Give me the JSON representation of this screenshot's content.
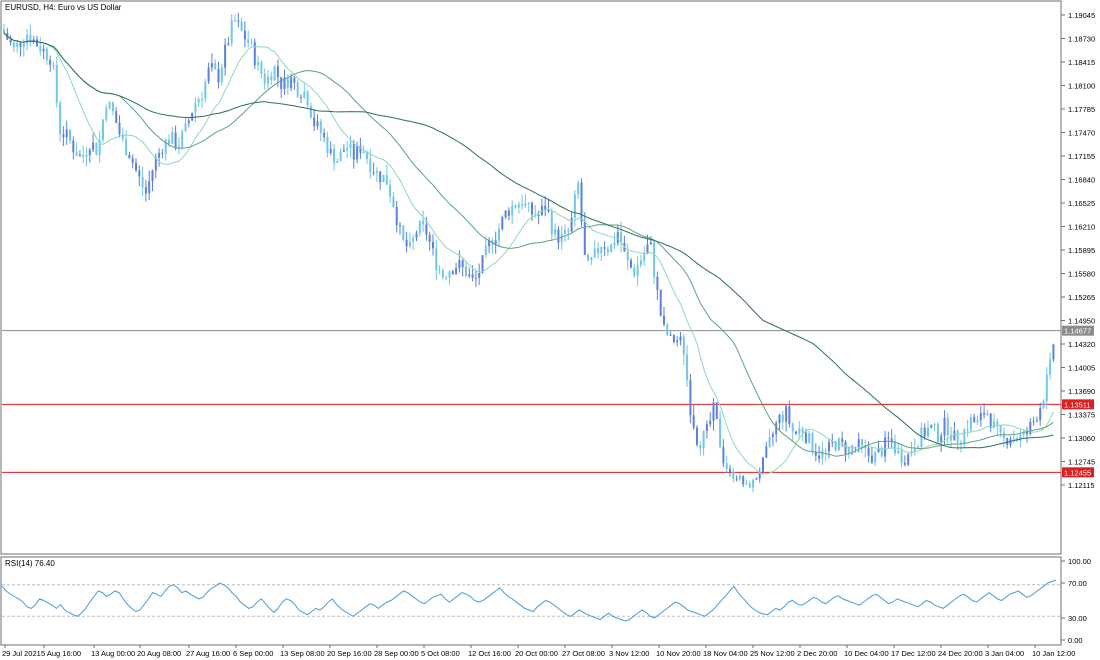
{
  "window": {
    "symbol": "EURUSD",
    "timeframe": "H4",
    "title": "EURUSD, H4:  Euro vs US Dollar"
  },
  "colors": {
    "background": "#ffffff",
    "frame": "#6f6f6f",
    "candle": "#5b7fe6",
    "candle_alt": "#6fc7ea",
    "ma_fast": "#8fd9b8",
    "ma_mid": "#5fa27f",
    "ma_slow": "#2f6f55",
    "price_line": "#8c8c8c",
    "level_line": "#e01e1e",
    "rsi_line": "#4a9be0",
    "rsi_levels": "#bdbdbd"
  },
  "chart_data": [
    {
      "type": "candlestick",
      "title": "EURUSD, H4:  Euro vs US Dollar",
      "ylim": [
        1.20525,
        1.19045
      ],
      "y_ticks": [
        "1.19045",
        "1.18730",
        "1.18415",
        "1.18100",
        "1.17785",
        "1.17470",
        "1.17155",
        "1.16840",
        "1.16525",
        "1.16210",
        "1.15895",
        "1.15580",
        "1.15265",
        "1.14950",
        "1.14320",
        "1.14005",
        "1.13690",
        "1.13375",
        "1.13060",
        "1.12745",
        "1.12115"
      ],
      "x_ticks": [
        "29 Jul 2021",
        "5 Aug 16:00",
        "13 Aug 00:00",
        "20 Aug 08:00",
        "27 Aug 16:00",
        "6 Sep 00:00",
        "13 Sep 08:00",
        "20 Sep 16:00",
        "28 Sep 00:00",
        "5 Oct 08:00",
        "12 Oct 16:00",
        "20 Oct 00:00",
        "27 Oct 08:00",
        "3 Nov 12:00",
        "10 Nov 20:00",
        "18 Nov 04:00",
        "25 Nov 12:00",
        "2 Dec 20:00",
        "10 Dec 04:00",
        "17 Dec 12:00",
        "24 Dec 20:00",
        "3 Jan 04:00",
        "10 Jan 12:00"
      ],
      "price_labels": [
        {
          "text": "1.14677",
          "value": 1.14677,
          "kind": "current"
        },
        {
          "text": "1.13511",
          "value": 1.13511,
          "kind": "level"
        },
        {
          "text": "1.12455",
          "value": 1.12455,
          "kind": "level"
        }
      ],
      "close_path": [
        [
          0,
          1.1885
        ],
        [
          12,
          1.1858
        ],
        [
          25,
          1.188
        ],
        [
          38,
          1.1862
        ],
        [
          50,
          1.1845
        ],
        [
          58,
          1.175
        ],
        [
          66,
          1.174
        ],
        [
          72,
          1.1725
        ],
        [
          80,
          1.1712
        ],
        [
          88,
          1.1735
        ],
        [
          96,
          1.1722
        ],
        [
          104,
          1.179
        ],
        [
          112,
          1.177
        ],
        [
          120,
          1.1735
        ],
        [
          128,
          1.1718
        ],
        [
          136,
          1.1688
        ],
        [
          144,
          1.1665
        ],
        [
          152,
          1.1705
        ],
        [
          160,
          1.1728
        ],
        [
          168,
          1.174
        ],
        [
          176,
          1.173
        ],
        [
          184,
          1.1752
        ],
        [
          192,
          1.1785
        ],
        [
          200,
          1.18
        ],
        [
          208,
          1.1835
        ],
        [
          216,
          1.182
        ],
        [
          224,
          1.186
        ],
        [
          232,
          1.1898
        ],
        [
          240,
          1.188
        ],
        [
          248,
          1.1865
        ],
        [
          256,
          1.1835
        ],
        [
          264,
          1.1815
        ],
        [
          272,
          1.1835
        ],
        [
          280,
          1.181
        ],
        [
          288,
          1.182
        ],
        [
          296,
          1.1805
        ],
        [
          304,
          1.18
        ],
        [
          312,
          1.176
        ],
        [
          320,
          1.1745
        ],
        [
          328,
          1.172
        ],
        [
          336,
          1.171
        ],
        [
          344,
          1.173
        ],
        [
          352,
          1.1715
        ],
        [
          360,
          1.173
        ],
        [
          368,
          1.1705
        ],
        [
          376,
          1.169
        ],
        [
          384,
          1.1685
        ],
        [
          392,
          1.165
        ],
        [
          400,
          1.16
        ],
        [
          408,
          1.159
        ],
        [
          416,
          1.162
        ],
        [
          424,
          1.1615
        ],
        [
          432,
          1.158
        ],
        [
          440,
          1.1555
        ],
        [
          448,
          1.1565
        ],
        [
          456,
          1.157
        ],
        [
          464,
          1.156
        ],
        [
          472,
          1.1545
        ],
        [
          480,
          1.157
        ],
        [
          488,
          1.16
        ],
        [
          496,
          1.1615
        ],
        [
          504,
          1.164
        ],
        [
          512,
          1.165
        ],
        [
          520,
          1.1655
        ],
        [
          528,
          1.164
        ],
        [
          536,
          1.1635
        ],
        [
          544,
          1.165
        ],
        [
          552,
          1.161
        ],
        [
          560,
          1.1605
        ],
        [
          568,
          1.1615
        ],
        [
          576,
          1.168
        ],
        [
          584,
          1.156
        ],
        [
          592,
          1.158
        ],
        [
          600,
          1.16
        ],
        [
          608,
          1.159
        ],
        [
          616,
          1.1615
        ],
        [
          624,
          1.1575
        ],
        [
          632,
          1.156
        ],
        [
          640,
          1.158
        ],
        [
          648,
          1.16
        ],
        [
          656,
          1.1525
        ],
        [
          664,
          1.146
        ],
        [
          672,
          1.144
        ],
        [
          680,
          1.1445
        ],
        [
          688,
          1.135
        ],
        [
          696,
          1.13
        ],
        [
          704,
          1.131
        ],
        [
          712,
          1.1345
        ],
        [
          720,
          1.1285
        ],
        [
          728,
          1.124
        ],
        [
          736,
          1.1235
        ],
        [
          744,
          1.1205
        ],
        [
          752,
          1.122
        ],
        [
          760,
          1.1265
        ],
        [
          768,
          1.13
        ],
        [
          776,
          1.133
        ],
        [
          784,
          1.134
        ],
        [
          792,
          1.131
        ],
        [
          800,
          1.132
        ],
        [
          808,
          1.13
        ],
        [
          816,
          1.1285
        ],
        [
          824,
          1.1285
        ],
        [
          832,
          1.13
        ],
        [
          840,
          1.1295
        ],
        [
          848,
          1.129
        ],
        [
          856,
          1.1295
        ],
        [
          864,
          1.1285
        ],
        [
          872,
          1.128
        ],
        [
          880,
          1.129
        ],
        [
          888,
          1.1305
        ],
        [
          896,
          1.1285
        ],
        [
          904,
          1.1275
        ],
        [
          912,
          1.13
        ],
        [
          920,
          1.131
        ],
        [
          928,
          1.132
        ],
        [
          936,
          1.131
        ],
        [
          944,
          1.1325
        ],
        [
          952,
          1.1305
        ],
        [
          960,
          1.131
        ],
        [
          968,
          1.133
        ],
        [
          976,
          1.1325
        ],
        [
          984,
          1.1345
        ],
        [
          992,
          1.132
        ],
        [
          1000,
          1.13
        ],
        [
          1008,
          1.131
        ],
        [
          1016,
          1.1305
        ],
        [
          1024,
          1.131
        ],
        [
          1032,
          1.133
        ],
        [
          1040,
          1.1355
        ],
        [
          1048,
          1.14
        ],
        [
          1055,
          1.1468
        ]
      ]
    },
    {
      "type": "line",
      "title": "RSI(14) 76.40",
      "ylim": [
        0,
        100
      ],
      "y_ticks": [
        "100.00",
        "70.00",
        "30.00",
        "0.00"
      ],
      "levels": [
        70,
        30
      ],
      "values": [
        68,
        62,
        58,
        55,
        52,
        48,
        42,
        40,
        45,
        52,
        50,
        47,
        44,
        40,
        45,
        38,
        35,
        32,
        30,
        34,
        40,
        48,
        55,
        62,
        60,
        55,
        58,
        62,
        60,
        52,
        45,
        40,
        36,
        38,
        45,
        52,
        60,
        58,
        55,
        62,
        68,
        70,
        66,
        60,
        62,
        58,
        55,
        52,
        54,
        60,
        65,
        68,
        72,
        70,
        66,
        60,
        55,
        48,
        44,
        40,
        42,
        48,
        52,
        46,
        40,
        35,
        40,
        48,
        52,
        50,
        45,
        38,
        35,
        32,
        36,
        40,
        38,
        42,
        48,
        52,
        45,
        40,
        36,
        33,
        30,
        34,
        38,
        42,
        46,
        44,
        40,
        44,
        48,
        50,
        54,
        58,
        62,
        60,
        56,
        52,
        48,
        46,
        50,
        54,
        56,
        58,
        52,
        48,
        52,
        56,
        60,
        58,
        55,
        50,
        48,
        50,
        54,
        58,
        62,
        66,
        60,
        55,
        52,
        48,
        44,
        40,
        38,
        36,
        42,
        46,
        50,
        48,
        44,
        40,
        36,
        32,
        30,
        34,
        38,
        35,
        32,
        30,
        28,
        26,
        30,
        34,
        30,
        28,
        26,
        24,
        26,
        30,
        34,
        38,
        35,
        30,
        28,
        32,
        36,
        40,
        44,
        48,
        46,
        42,
        38,
        36,
        34,
        32,
        30,
        34,
        38,
        44,
        50,
        56,
        62,
        68,
        60,
        54,
        48,
        42,
        38,
        35,
        33,
        32,
        36,
        40,
        38,
        42,
        48,
        50,
        46,
        44,
        46,
        50,
        54,
        52,
        48,
        46,
        50,
        54,
        56,
        52,
        50,
        48,
        46,
        44,
        48,
        52,
        56,
        58,
        54,
        50,
        46,
        48,
        52,
        50,
        48,
        46,
        44,
        42,
        46,
        50,
        48,
        44,
        42,
        40,
        44,
        48,
        52,
        56,
        58,
        54,
        50,
        48,
        52,
        56,
        60,
        56,
        52,
        50,
        54,
        58,
        60,
        62,
        58,
        54,
        56,
        60,
        64,
        68,
        72,
        74,
        76
      ]
    }
  ]
}
